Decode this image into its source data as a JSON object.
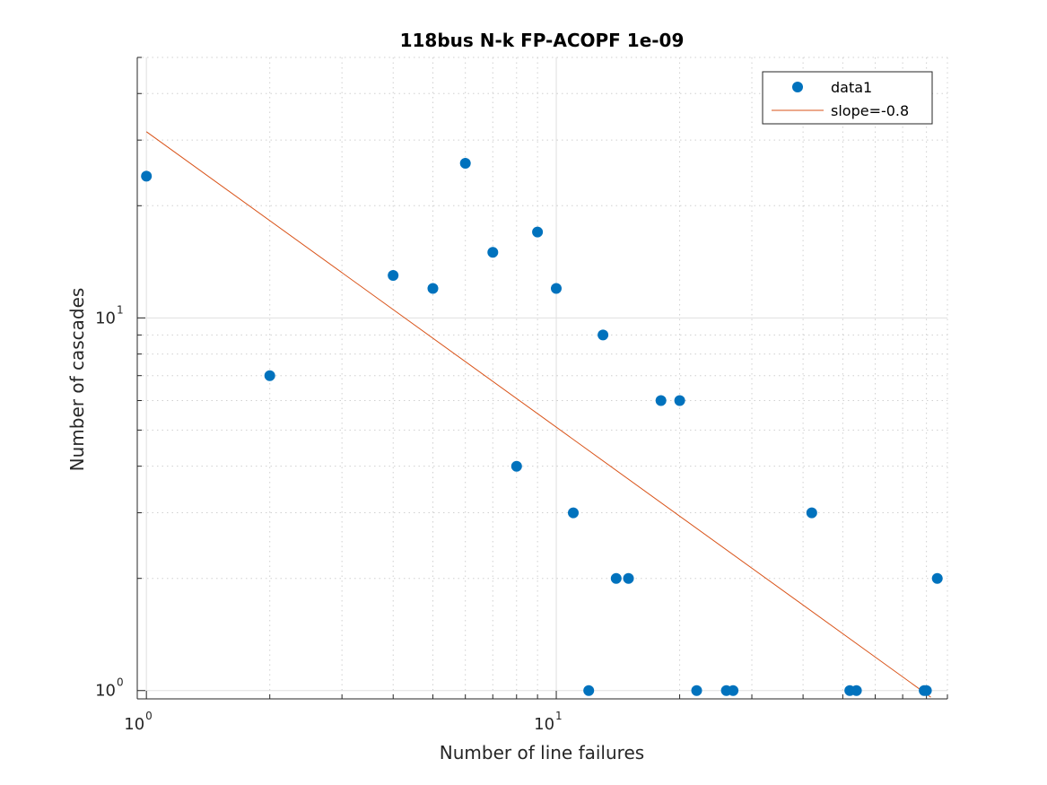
{
  "chart_data": {
    "type": "scatter",
    "title": "118bus N-k FP-ACOPF 1e-09",
    "xlabel": "Number of line failures",
    "ylabel": "Number of cascades",
    "xscale": "log",
    "yscale": "log",
    "xlim": [
      0.95,
      90
    ],
    "ylim": [
      0.95,
      50
    ],
    "grid": true,
    "minor_grid": true,
    "legend_position": "top-right",
    "x_ticks": [
      {
        "value": 1,
        "base": "10",
        "exp": "0"
      },
      {
        "value": 10,
        "base": "10",
        "exp": "1"
      }
    ],
    "y_ticks": [
      {
        "value": 1,
        "base": "10",
        "exp": "0"
      },
      {
        "value": 10,
        "base": "10",
        "exp": "1"
      }
    ],
    "series": [
      {
        "name": "data1",
        "kind": "scatter",
        "color": "#0072BD",
        "x": [
          1,
          2,
          4,
          5,
          6,
          7,
          8,
          9,
          10,
          11,
          12,
          13,
          14,
          15,
          18,
          20,
          22,
          26,
          27,
          42,
          52,
          54,
          79,
          80,
          85
        ],
        "y": [
          24,
          7,
          13,
          12,
          26,
          15,
          4,
          17,
          12,
          3,
          1,
          9,
          2,
          2,
          6,
          6,
          1,
          1,
          1,
          3,
          1,
          1,
          1,
          1,
          2
        ]
      },
      {
        "name": "slope=-0.8",
        "kind": "line",
        "color": "#D95319",
        "x": [
          1,
          82
        ],
        "y": [
          31.6,
          0.96
        ]
      }
    ]
  }
}
